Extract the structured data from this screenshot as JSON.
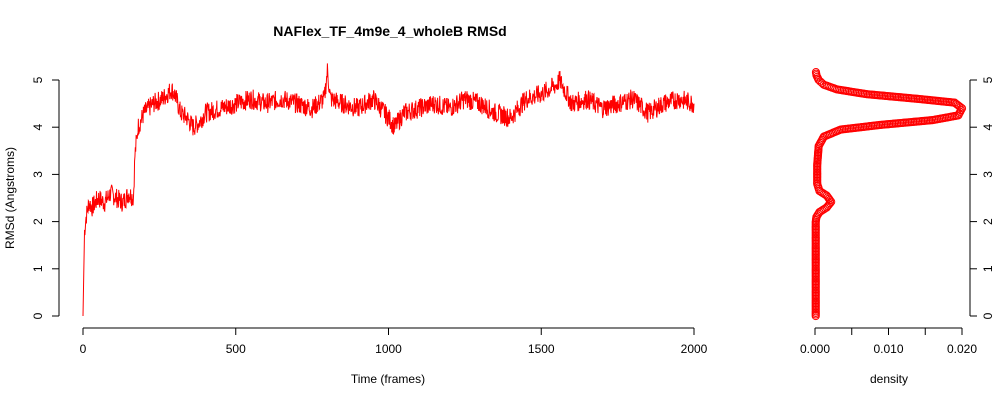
{
  "chart_data": [
    {
      "type": "line",
      "title": "NAFlex_TF_4m9e_4_wholeB RMSd",
      "xlabel": "Time (frames)",
      "ylabel": "RMSd (Angstroms)",
      "xlim": [
        0,
        2000
      ],
      "ylim": [
        0,
        5
      ],
      "xticks": [
        "0",
        "500",
        "1000",
        "1500",
        "2000"
      ],
      "yticks": [
        "0",
        "1",
        "2",
        "3",
        "4",
        "5"
      ],
      "color": "#ff0000",
      "series": [
        {
          "x": [
            0,
            5,
            10,
            20,
            30,
            50,
            70,
            90,
            110,
            130,
            150,
            165,
            170,
            180,
            200,
            230,
            260,
            290,
            300,
            320,
            340,
            360,
            380,
            400,
            450,
            500,
            550,
            600,
            650,
            700,
            750,
            790,
            800,
            810,
            850,
            900,
            950,
            1000,
            1020,
            1050,
            1100,
            1150,
            1200,
            1250,
            1300,
            1350,
            1400,
            1450,
            1500,
            1550,
            1560,
            1600,
            1650,
            1700,
            1750,
            1800,
            1850,
            1900,
            1950,
            2000
          ],
          "y": [
            0,
            1.8,
            2.1,
            2.4,
            2.3,
            2.5,
            2.4,
            2.6,
            2.5,
            2.4,
            2.6,
            2.5,
            3.4,
            4.0,
            4.3,
            4.5,
            4.6,
            4.8,
            4.7,
            4.3,
            4.2,
            4.0,
            4.1,
            4.3,
            4.4,
            4.5,
            4.6,
            4.5,
            4.6,
            4.5,
            4.4,
            4.6,
            5.2,
            4.6,
            4.5,
            4.4,
            4.6,
            4.2,
            4.0,
            4.3,
            4.4,
            4.5,
            4.4,
            4.6,
            4.5,
            4.3,
            4.2,
            4.6,
            4.7,
            4.9,
            5.0,
            4.5,
            4.6,
            4.4,
            4.5,
            4.6,
            4.3,
            4.5,
            4.6,
            4.5
          ]
        }
      ]
    },
    {
      "type": "scatter",
      "xlabel": "density",
      "ylabel": "",
      "xlim": [
        0,
        0.02
      ],
      "ylim": [
        0,
        5
      ],
      "xticks": [
        "0.000",
        "0.010",
        "0.020"
      ],
      "yticks": [
        "0",
        "1",
        "2",
        "3",
        "4",
        "5"
      ],
      "color": "#ff0000",
      "series": [
        {
          "x": [
            0.0001,
            0.0001,
            0.0001,
            0.0001,
            0.0001,
            0.0001,
            0.0002,
            0.0006,
            0.0016,
            0.0022,
            0.0016,
            0.0006,
            0.0003,
            0.0003,
            0.0005,
            0.0012,
            0.0035,
            0.009,
            0.016,
            0.0195,
            0.02,
            0.019,
            0.014,
            0.007,
            0.003,
            0.0012,
            0.0005,
            0.0002,
            0.0001
          ],
          "y": [
            0.0,
            0.5,
            1.0,
            1.5,
            1.8,
            2.0,
            2.1,
            2.2,
            2.3,
            2.42,
            2.55,
            2.65,
            2.8,
            3.2,
            3.6,
            3.8,
            3.95,
            4.05,
            4.15,
            4.25,
            4.4,
            4.52,
            4.6,
            4.7,
            4.8,
            4.9,
            5.0,
            5.1,
            5.2
          ]
        }
      ]
    }
  ]
}
